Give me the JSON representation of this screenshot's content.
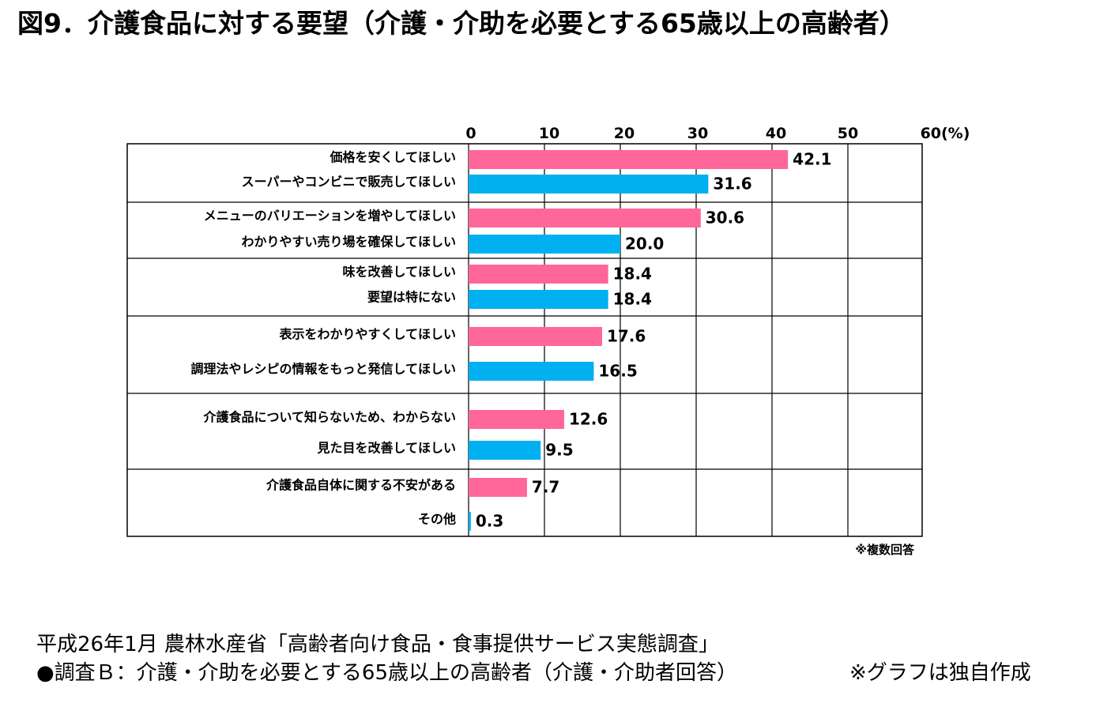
{
  "title": "図9．介護食品に対する要望（介護・介助を必要とする65歳以上の高齢者）",
  "chart_data": {
    "type": "bar",
    "orientation": "horizontal",
    "xlim": [
      0,
      60
    ],
    "ticks": [
      "0",
      "10",
      "20",
      "30",
      "40",
      "50",
      "60(%)"
    ],
    "grid": true,
    "colors": {
      "pink": "#ff6699",
      "blue": "#00b0f0"
    },
    "groups": [
      [
        {
          "label": "価格を安くしてほしい",
          "value": 42.1,
          "display": "42.1",
          "color": "pink"
        },
        {
          "label": "スーパーやコンビニで販売してほしい",
          "value": 31.6,
          "display": "31.6",
          "color": "blue"
        }
      ],
      [
        {
          "label": "メニューのバリエーションを増やしてほしい",
          "value": 30.6,
          "display": "30.6",
          "color": "pink"
        },
        {
          "label": "わかりやすい売り場を確保してほしい",
          "value": 20.0,
          "display": "20.0",
          "color": "blue"
        }
      ],
      [
        {
          "label": "味を改善してほしい",
          "value": 18.4,
          "display": "18.4",
          "color": "pink"
        },
        {
          "label": "要望は特にない",
          "value": 18.4,
          "display": "18.4",
          "color": "blue"
        }
      ],
      [
        {
          "label": "表示をわかりやすくしてほしい",
          "value": 17.6,
          "display": "17.6",
          "color": "pink"
        },
        {
          "label": "調理法やレシピの情報をもっと発信してほしい",
          "value": 16.5,
          "display": "16.5",
          "color": "blue"
        }
      ],
      [
        {
          "label": "介護食品について知らないため、わからない",
          "value": 12.6,
          "display": "12.6",
          "color": "pink"
        },
        {
          "label": "見た目を改善してほしい",
          "value": 9.5,
          "display": "9.5",
          "color": "blue"
        }
      ],
      [
        {
          "label": "介護食品自体に関する不安がある",
          "value": 7.7,
          "display": "7.7",
          "color": "pink"
        },
        {
          "label": "その他",
          "value": 0.3,
          "display": "0.3",
          "color": "blue"
        }
      ]
    ],
    "note": "※複数回答"
  },
  "source": {
    "line1": "平成26年1月 農林水産省「高齢者向け食品・食事提供サービス実態調査」",
    "line2": "●調査Ｂ：介護・介助を必要とする65歳以上の高齢者（介護・介助者回答）",
    "own_note": "※グラフは独自作成"
  }
}
